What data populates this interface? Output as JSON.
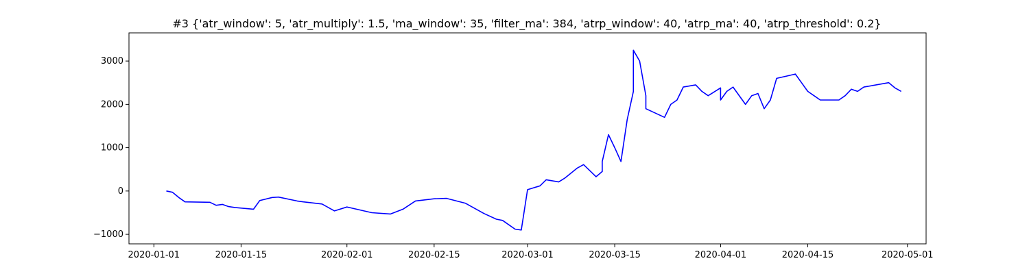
{
  "chart_data": {
    "type": "line",
    "title": "#3 {'atr_window': 5, 'atr_multiply': 1.5, 'ma_window': 35, 'filter_ma': 384, 'atrp_window': 40, 'atrp_ma': 40, 'atrp_threshold': 0.2}",
    "xlabel": "",
    "ylabel": "",
    "x_is_date": true,
    "xlim": [
      "2019-12-28",
      "2020-05-04"
    ],
    "ylim": [
      -1220,
      3650
    ],
    "x_ticks": [
      "2020-01-01",
      "2020-01-15",
      "2020-02-01",
      "2020-02-15",
      "2020-03-01",
      "2020-03-15",
      "2020-04-01",
      "2020-04-15",
      "2020-05-01"
    ],
    "y_ticks": [
      -1000,
      0,
      1000,
      2000,
      3000
    ],
    "grid": false,
    "legend": null,
    "series": [
      {
        "color": "#0000ff",
        "x": [
          "2020-01-03",
          "2020-01-04",
          "2020-01-05",
          "2020-01-06",
          "2020-01-10",
          "2020-01-11",
          "2020-01-12",
          "2020-01-13",
          "2020-01-14",
          "2020-01-17",
          "2020-01-18",
          "2020-01-20",
          "2020-01-21",
          "2020-01-24",
          "2020-01-25",
          "2020-01-28",
          "2020-01-30",
          "2020-02-01",
          "2020-02-05",
          "2020-02-08",
          "2020-02-10",
          "2020-02-12",
          "2020-02-15",
          "2020-02-17",
          "2020-02-20",
          "2020-02-23",
          "2020-02-25",
          "2020-02-26",
          "2020-02-27",
          "2020-02-28",
          "2020-02-29",
          "2020-03-01",
          "2020-03-03",
          "2020-03-04",
          "2020-03-06",
          "2020-03-07",
          "2020-03-09",
          "2020-03-10",
          "2020-03-12",
          "2020-03-13",
          "2020-03-13",
          "2020-03-14",
          "2020-03-15",
          "2020-03-16",
          "2020-03-17",
          "2020-03-18",
          "2020-03-18",
          "2020-03-19",
          "2020-03-20",
          "2020-03-20",
          "2020-03-23",
          "2020-03-24",
          "2020-03-25",
          "2020-03-26",
          "2020-03-28",
          "2020-03-29",
          "2020-03-30",
          "2020-04-01",
          "2020-04-01",
          "2020-04-02",
          "2020-04-03",
          "2020-04-05",
          "2020-04-06",
          "2020-04-07",
          "2020-04-08",
          "2020-04-09",
          "2020-04-10",
          "2020-04-13",
          "2020-04-14",
          "2020-04-15",
          "2020-04-16",
          "2020-04-17",
          "2020-04-20",
          "2020-04-21",
          "2020-04-22",
          "2020-04-23",
          "2020-04-24",
          "2020-04-28",
          "2020-04-29",
          "2020-04-30"
        ],
        "y": [
          0,
          -30,
          -150,
          -250,
          -260,
          -330,
          -310,
          -360,
          -380,
          -420,
          -220,
          -150,
          -140,
          -230,
          -250,
          -300,
          -460,
          -370,
          -500,
          -530,
          -420,
          -230,
          -180,
          -170,
          -280,
          -520,
          -650,
          -680,
          -780,
          -880,
          -900,
          30,
          120,
          260,
          210,
          300,
          530,
          610,
          330,
          450,
          680,
          1300,
          1000,
          680,
          1650,
          2300,
          3250,
          3000,
          2200,
          1900,
          1700,
          2000,
          2100,
          2400,
          2450,
          2300,
          2200,
          2380,
          2100,
          2300,
          2400,
          2000,
          2200,
          2250,
          1900,
          2100,
          2600,
          2700,
          2500,
          2300,
          2200,
          2100,
          2100,
          2200,
          2350,
          2300,
          2400,
          2500,
          2380,
          2300
        ]
      }
    ]
  }
}
